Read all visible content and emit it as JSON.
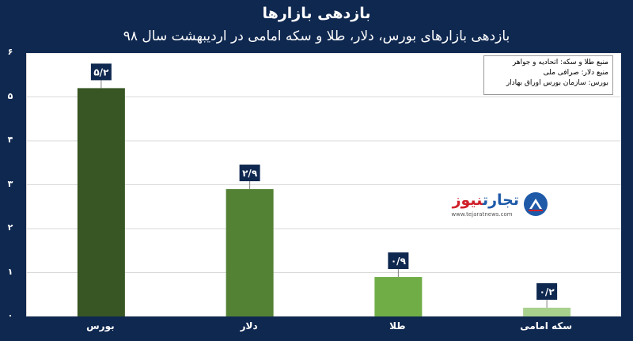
{
  "header": {
    "title": "بازدهی بازارها",
    "subtitle": "بازدهی بازارهای بورس، دلار، طلا و سکه امامی در اردیبهشت سال ۹۸"
  },
  "sources": {
    "lines": [
      "منبع طلا و سکه: اتحادیه و جواهر",
      "منبع دلار: صرافی ملی",
      "بورس: سازمان بورس اوراق بهادار"
    ]
  },
  "logo": {
    "name_part1": "تجارت",
    "name_part2": "نیوز",
    "url": "www.tejaratnews.com",
    "icon": "tejarat-news-logo-icon"
  },
  "chart_data": {
    "type": "bar",
    "title": "بازدهی بازارها",
    "subtitle": "بازدهی بازارهای بورس، دلار، طلا و سکه امامی در اردیبهشت سال ۹۸",
    "categories": [
      "بورس",
      "دلار",
      "طلا",
      "سکه امامی"
    ],
    "values": [
      5.2,
      2.9,
      0.9,
      0.2
    ],
    "data_labels": [
      "۵/۲",
      "۲/۹",
      "۰/۹",
      "۰/۲"
    ],
    "bar_colors": [
      "#375623",
      "#548235",
      "#70ad47",
      "#a9d18e"
    ],
    "yticks": [
      0,
      1,
      2,
      3,
      4,
      5,
      6
    ],
    "ytick_labels": [
      "۰",
      "۱",
      "۲",
      "۳",
      "۴",
      "۵",
      "۶"
    ],
    "ylim": [
      0,
      6
    ],
    "grid": true,
    "xlabel": "",
    "ylabel": ""
  },
  "colors": {
    "background": "#0f2850",
    "plot_background": "#ffffff",
    "label_box": "#0f2850",
    "gridline": "#d9d9d9"
  }
}
